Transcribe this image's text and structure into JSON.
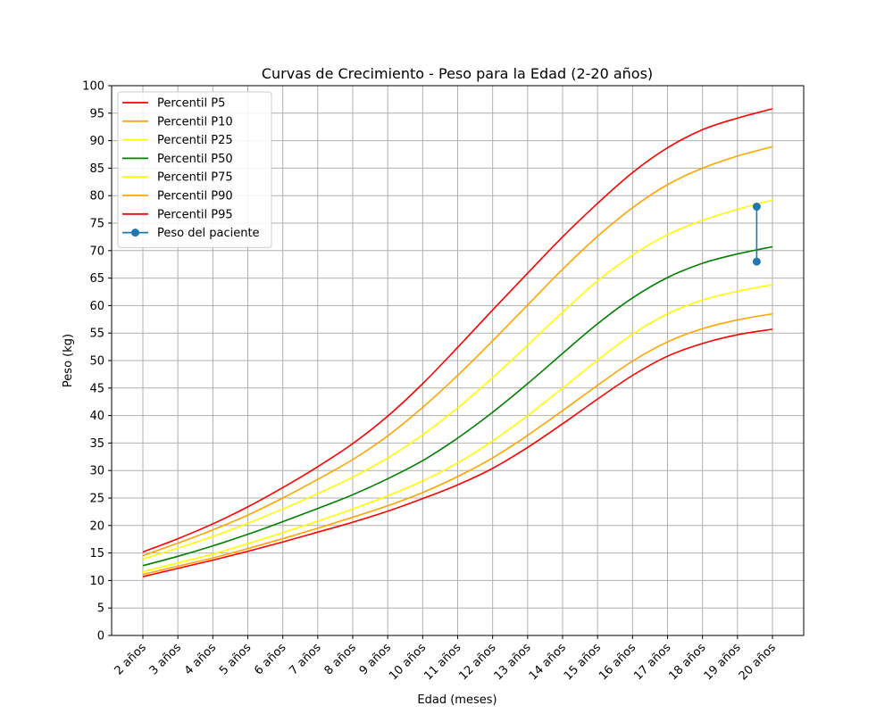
{
  "chart_data": {
    "type": "line",
    "title": "Curvas de Crecimiento - Peso para la Edad (2-20 años)",
    "xlabel": "Edad (meses)",
    "ylabel": "Peso (kg)",
    "ylim": [
      0,
      100
    ],
    "yticks": [
      0,
      5,
      10,
      15,
      20,
      25,
      30,
      35,
      40,
      45,
      50,
      55,
      60,
      65,
      70,
      75,
      80,
      85,
      90,
      95,
      100
    ],
    "categories": [
      "2 años",
      "3 años",
      "4 años",
      "5 años",
      "6 años",
      "7 años",
      "8 años",
      "9 años",
      "10 años",
      "11 años",
      "12 años",
      "13 años",
      "14 años",
      "15 años",
      "16 años",
      "17 años",
      "18 años",
      "19 años",
      "20 años"
    ],
    "grid": true,
    "legend_position": "top-left",
    "series": [
      {
        "name": "Percentil P5",
        "color": "#ff0000",
        "values": [
          10.7,
          12.2,
          13.7,
          15.3,
          17.0,
          18.8,
          20.6,
          22.6,
          24.9,
          27.4,
          30.4,
          34.2,
          38.5,
          43.0,
          47.3,
          50.8,
          53.1,
          54.7,
          55.7
        ]
      },
      {
        "name": "Percentil P10",
        "color": "#ffa500",
        "values": [
          11.1,
          12.6,
          14.1,
          15.8,
          17.6,
          19.5,
          21.5,
          23.6,
          26.0,
          28.9,
          32.3,
          36.4,
          40.9,
          45.5,
          49.9,
          53.4,
          55.8,
          57.4,
          58.5
        ]
      },
      {
        "name": "Percentil P25",
        "color": "#ffff00",
        "values": [
          11.6,
          13.2,
          14.8,
          16.7,
          18.7,
          20.8,
          23.0,
          25.4,
          28.1,
          31.4,
          35.4,
          40.0,
          45.0,
          50.1,
          54.8,
          58.5,
          61.0,
          62.6,
          63.8
        ]
      },
      {
        "name": "Percentil P50",
        "color": "#008000",
        "values": [
          12.7,
          14.4,
          16.3,
          18.4,
          20.7,
          23.1,
          25.6,
          28.5,
          31.8,
          35.9,
          40.6,
          45.8,
          51.3,
          56.7,
          61.4,
          65.1,
          67.7,
          69.4,
          70.7
        ]
      },
      {
        "name": "Percentil P75",
        "color": "#ffff00",
        "values": [
          13.9,
          15.9,
          18.0,
          20.4,
          23.0,
          25.8,
          28.8,
          32.3,
          36.5,
          41.4,
          46.9,
          52.8,
          58.8,
          64.5,
          69.2,
          72.9,
          75.5,
          77.5,
          79.2
        ]
      },
      {
        "name": "Percentil P90",
        "color": "#ffa500",
        "values": [
          14.5,
          16.8,
          19.2,
          21.9,
          25.0,
          28.4,
          32.0,
          36.3,
          41.5,
          47.3,
          53.6,
          60.1,
          66.6,
          72.6,
          77.8,
          82.0,
          85.0,
          87.2,
          88.9
        ]
      },
      {
        "name": "Percentil P95",
        "color": "#ff0000",
        "values": [
          15.2,
          17.6,
          20.3,
          23.4,
          26.9,
          30.7,
          34.9,
          39.9,
          45.8,
          52.4,
          59.2,
          65.9,
          72.5,
          78.6,
          84.2,
          88.7,
          92.0,
          94.1,
          95.8
        ]
      },
      {
        "name": "Peso del paciente",
        "color": "#1f77b4",
        "marker": "circle",
        "points": [
          {
            "x": 19.55,
            "y": 68
          },
          {
            "x": 19.55,
            "y": 78
          }
        ]
      }
    ]
  }
}
